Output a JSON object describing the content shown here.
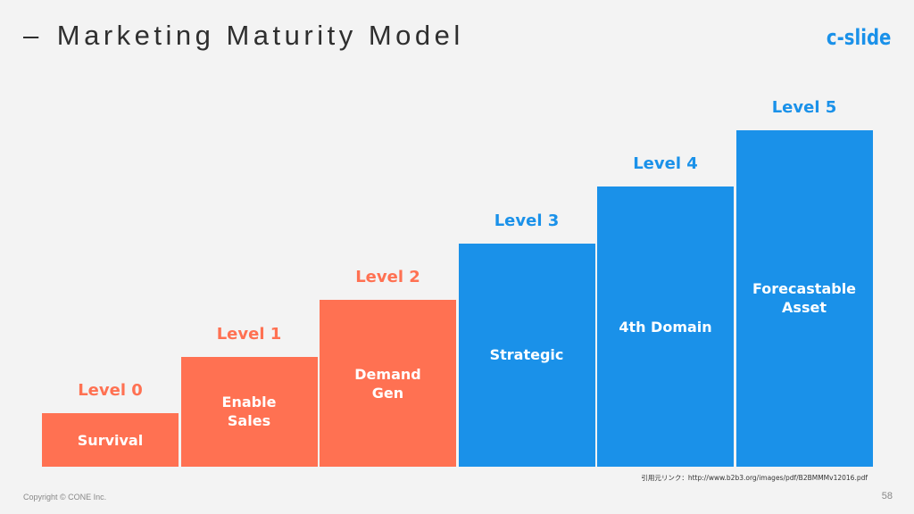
{
  "slide": {
    "title_prefix": "–",
    "title": "Marketing Maturity Model",
    "logo": "c-slide",
    "source": "引用元リンク：http://www.b2b3.org/images/pdf/B2BMMMv12016.pdf",
    "copyright": "Copyright © CONE Inc.",
    "page_number": "58"
  },
  "colors": {
    "orange": "#ff7152",
    "blue": "#1a91e9",
    "background": "#f3f3f3",
    "title_text": "#2f2f2f"
  },
  "steps": [
    {
      "level": "Level 0",
      "label": "Survival",
      "tier": 0,
      "color": "orange"
    },
    {
      "level": "Level 1",
      "label": "Enable\nSales",
      "tier": 1,
      "color": "orange"
    },
    {
      "level": "Level 2",
      "label": "Demand\nGen",
      "tier": 2,
      "color": "orange"
    },
    {
      "level": "Level 3",
      "label": "Strategic",
      "tier": 3,
      "color": "blue"
    },
    {
      "level": "Level 4",
      "label": "4th Domain",
      "tier": 4,
      "color": "blue"
    },
    {
      "level": "Level 5",
      "label": "Forecastable\nAsset",
      "tier": 5,
      "color": "blue"
    }
  ]
}
